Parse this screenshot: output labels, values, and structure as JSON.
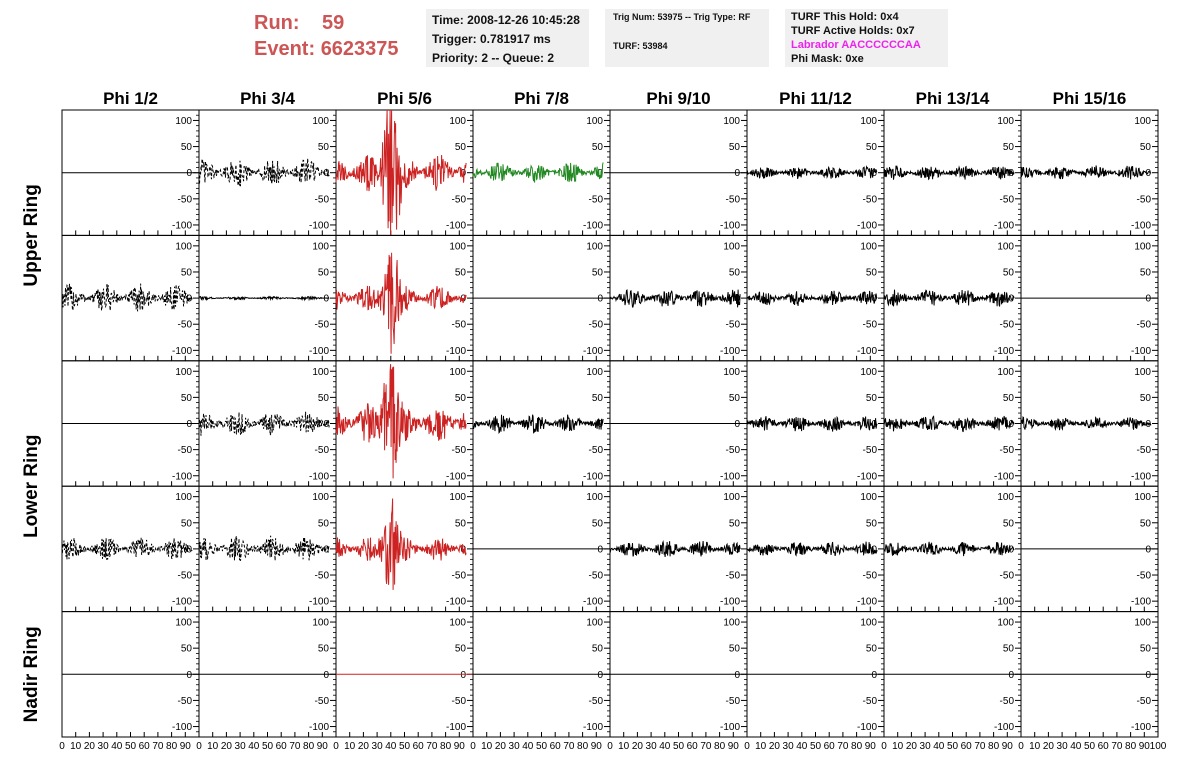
{
  "header": {
    "run_label": "Run:",
    "run_value": "59",
    "event_label": "Event:",
    "event_value": "6623375",
    "time": "Time: 2008-12-26 10:45:28",
    "trigger": "Trigger: 0.781917 ms",
    "priority": "Priority: 2 -- Queue: 2",
    "trig_num": "Trig Num: 53975 -- Trig Type: RF",
    "turf": "TURF: 53984",
    "turf_hold": "TURF This Hold: 0x4",
    "turf_active": "TURF Active Holds: 0x7",
    "labrador": "Labrador AACCCCCCAA",
    "phi_mask": "Phi Mask: 0xe"
  },
  "colors": {
    "header_red": "#cc5555",
    "labrador_magenta": "#ee22ee",
    "trace_black": "#000000",
    "trace_red": "#cc2222",
    "trace_green": "#228822"
  },
  "chart_data": {
    "type": "line",
    "columns": [
      "Phi 1/2",
      "Phi 3/4",
      "Phi 5/6",
      "Phi 7/8",
      "Phi 9/10",
      "Phi 11/12",
      "Phi 13/14",
      "Phi 15/16"
    ],
    "rings": [
      "Upper Ring",
      "Lower Ring",
      "Nadir Ring"
    ],
    "xlim": [
      0,
      100
    ],
    "ylim": [
      -120,
      120
    ],
    "yticks": [
      "100",
      "50",
      "0",
      "-50",
      "-100"
    ],
    "xticks": [
      "0",
      "10",
      "20",
      "30",
      "40",
      "50",
      "60",
      "70",
      "80",
      "90",
      "100"
    ],
    "grid": false,
    "rows": [
      [
        {
          "amp": 0,
          "color": "black"
        },
        {
          "amp": 28,
          "color": "black",
          "style": "dashed"
        },
        {
          "amp": 38,
          "color": "red",
          "spike": 105
        },
        {
          "amp": 20,
          "color": "green"
        },
        {
          "amp": 0,
          "color": "black"
        },
        {
          "amp": 12,
          "color": "black"
        },
        {
          "amp": 14,
          "color": "black"
        },
        {
          "amp": 14,
          "color": "black"
        }
      ],
      [
        {
          "amp": 28,
          "color": "black",
          "style": "dashed"
        },
        {
          "amp": 3,
          "color": "black"
        },
        {
          "amp": 25,
          "color": "red",
          "spike": 65
        },
        {
          "amp": 0,
          "color": "black"
        },
        {
          "amp": 18,
          "color": "black"
        },
        {
          "amp": 15,
          "color": "black"
        },
        {
          "amp": 17,
          "color": "black"
        },
        {
          "amp": 0,
          "color": "black"
        }
      ],
      [
        {
          "amp": 0,
          "color": "black"
        },
        {
          "amp": 24,
          "color": "black",
          "style": "dashed"
        },
        {
          "amp": 38,
          "color": "red",
          "spike": 95
        },
        {
          "amp": 18,
          "color": "black"
        },
        {
          "amp": 0,
          "color": "black"
        },
        {
          "amp": 16,
          "color": "black"
        },
        {
          "amp": 17,
          "color": "black"
        },
        {
          "amp": 13,
          "color": "black"
        }
      ],
      [
        {
          "amp": 22,
          "color": "black",
          "style": "dashed"
        },
        {
          "amp": 26,
          "color": "black",
          "style": "dashed"
        },
        {
          "amp": 24,
          "color": "red",
          "spike": 58
        },
        {
          "amp": 0,
          "color": "black"
        },
        {
          "amp": 16,
          "color": "black"
        },
        {
          "amp": 14,
          "color": "black"
        },
        {
          "amp": 14,
          "color": "black"
        },
        {
          "amp": 0,
          "color": "black"
        }
      ],
      [
        {
          "amp": 0,
          "color": "black"
        },
        {
          "amp": 0,
          "color": "black"
        },
        {
          "amp": 0,
          "color": "red"
        },
        {
          "amp": 0,
          "color": "black"
        },
        {
          "amp": 0,
          "color": "black"
        },
        {
          "amp": 0,
          "color": "black"
        },
        {
          "amp": 0,
          "color": "black"
        },
        {
          "amp": 0,
          "color": "black"
        }
      ]
    ]
  }
}
